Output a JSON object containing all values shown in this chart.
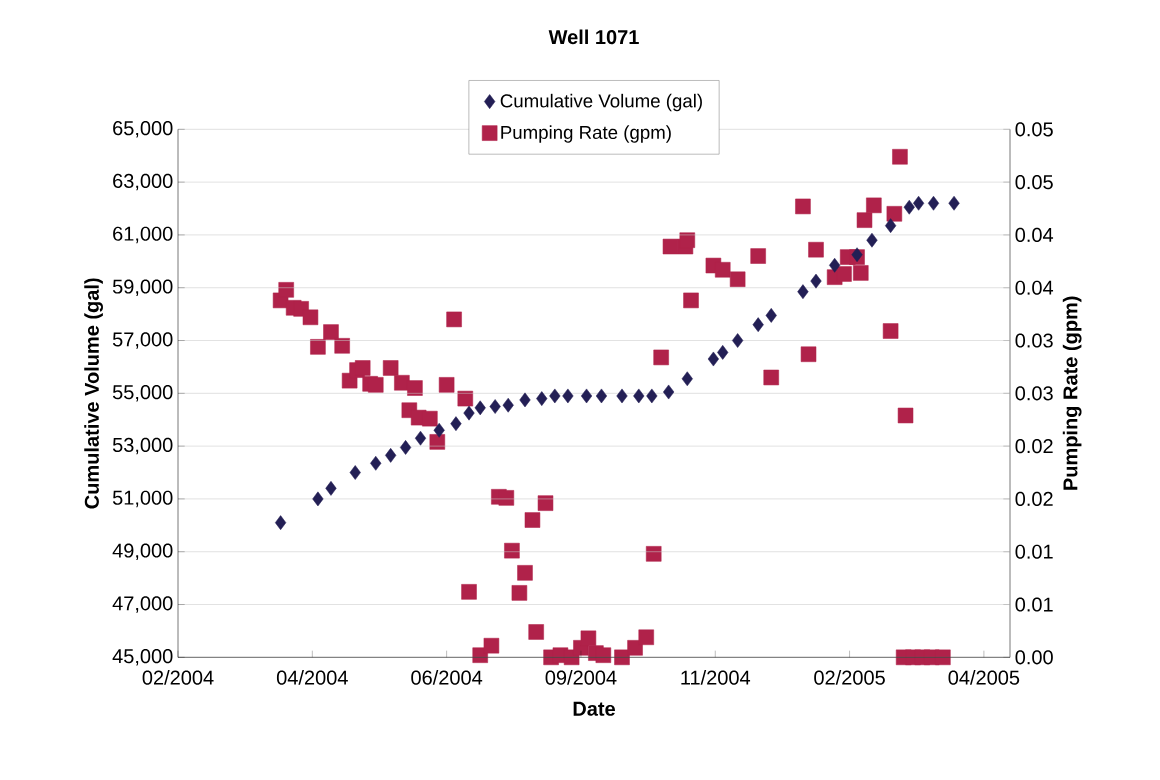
{
  "chart_data": {
    "type": "scatter",
    "title": "Well 1071",
    "xlabel": "Date",
    "ylabel": "Cumulative Volume (gal)",
    "y2label": "Pumping Rate (gpm)",
    "xlim": [
      "2004-02-07",
      "2005-04-28"
    ],
    "xticks": [
      {
        "value": "2004-02-07",
        "label": "02/2004"
      },
      {
        "value": "2004-04-19",
        "label": "04/2004"
      },
      {
        "value": "2004-06-30",
        "label": "06/2004"
      },
      {
        "value": "2004-09-10",
        "label": "09/2004"
      },
      {
        "value": "2004-11-21",
        "label": "11/2004"
      },
      {
        "value": "2005-02-01",
        "label": "02/2005"
      },
      {
        "value": "2005-04-14",
        "label": "04/2005"
      }
    ],
    "ylim": [
      45000,
      65000
    ],
    "yticks": [
      {
        "value": 45000,
        "label": "45,000"
      },
      {
        "value": 47000,
        "label": "47,000"
      },
      {
        "value": 49000,
        "label": "49,000"
      },
      {
        "value": 51000,
        "label": "51,000"
      },
      {
        "value": 53000,
        "label": "53,000"
      },
      {
        "value": 55000,
        "label": "55,000"
      },
      {
        "value": 57000,
        "label": "57,000"
      },
      {
        "value": 59000,
        "label": "59,000"
      },
      {
        "value": 61000,
        "label": "61,000"
      },
      {
        "value": 63000,
        "label": "63,000"
      },
      {
        "value": 65000,
        "label": "65,000"
      }
    ],
    "y2lim": [
      0,
      0.05
    ],
    "y2ticks": [
      {
        "value": 0,
        "label": "0.00"
      },
      {
        "value": 0.005,
        "label": "0.01"
      },
      {
        "value": 0.01,
        "label": "0.01"
      },
      {
        "value": 0.015,
        "label": "0.02"
      },
      {
        "value": 0.02,
        "label": "0.02"
      },
      {
        "value": 0.025,
        "label": "0.03"
      },
      {
        "value": 0.03,
        "label": "0.03"
      },
      {
        "value": 0.035,
        "label": "0.04"
      },
      {
        "value": 0.04,
        "label": "0.04"
      },
      {
        "value": 0.045,
        "label": "0.05"
      },
      {
        "value": 0.05,
        "label": "0.05"
      }
    ],
    "grid": "y",
    "legend": "top",
    "series": [
      {
        "name": "Cumulative Volume (gal)",
        "color": "#231f55",
        "marker": "diamond",
        "x": [
          "2004-04-02",
          "2004-04-22",
          "2004-04-29",
          "2004-05-12",
          "2004-05-23",
          "2004-05-31",
          "2004-06-08",
          "2004-06-16",
          "2004-06-26",
          "2004-07-05",
          "2004-07-12",
          "2004-07-18",
          "2004-07-26",
          "2004-08-02",
          "2004-08-11",
          "2004-08-20",
          "2004-08-27",
          "2004-09-03",
          "2004-09-13",
          "2004-09-21",
          "2004-10-02",
          "2004-10-11",
          "2004-10-18",
          "2004-10-27",
          "2004-11-06",
          "2004-11-20",
          "2004-11-25",
          "2004-12-03",
          "2004-12-14",
          "2004-12-21",
          "2005-01-07",
          "2005-01-14",
          "2005-01-24",
          "2005-02-05",
          "2005-02-13",
          "2005-02-23",
          "2005-03-05",
          "2005-03-10",
          "2005-03-18",
          "2005-03-29"
        ],
        "values": [
          50100,
          51000,
          51400,
          52000,
          52350,
          52650,
          52950,
          53300,
          53600,
          53850,
          54250,
          54450,
          54500,
          54550,
          54750,
          54800,
          54900,
          54900,
          54900,
          54900,
          54900,
          54900,
          54900,
          55050,
          55550,
          56300,
          56550,
          57000,
          57600,
          57950,
          58850,
          59250,
          59850,
          60250,
          60800,
          61350,
          62050,
          62200,
          62200,
          62200
        ]
      },
      {
        "name": "Pumping Rate (gpm)",
        "color": "#b0224a",
        "marker": "square",
        "axis": "y2",
        "x": [
          "2004-04-02",
          "2004-04-05",
          "2004-04-09",
          "2004-04-13",
          "2004-04-18",
          "2004-04-22",
          "2004-04-29",
          "2004-05-05",
          "2004-05-09",
          "2004-05-13",
          "2004-05-16",
          "2004-05-20",
          "2004-05-23",
          "2004-05-31",
          "2004-06-06",
          "2004-06-10",
          "2004-06-13",
          "2004-06-15",
          "2004-06-21",
          "2004-06-25",
          "2004-06-30",
          "2004-07-04",
          "2004-07-10",
          "2004-07-12",
          "2004-07-18",
          "2004-07-24",
          "2004-07-28",
          "2004-08-01",
          "2004-08-04",
          "2004-08-08",
          "2004-08-11",
          "2004-08-15",
          "2004-08-17",
          "2004-08-22",
          "2004-08-25",
          "2004-08-30",
          "2004-09-05",
          "2004-09-10",
          "2004-09-14",
          "2004-09-18",
          "2004-09-22",
          "2004-10-02",
          "2004-10-09",
          "2004-10-15",
          "2004-10-19",
          "2004-10-23",
          "2004-10-28",
          "2004-11-05",
          "2004-11-06",
          "2004-11-08",
          "2004-11-20",
          "2004-11-25",
          "2004-12-03",
          "2004-12-14",
          "2004-12-21",
          "2005-01-07",
          "2005-01-10",
          "2005-01-14",
          "2005-01-24",
          "2005-01-29",
          "2005-01-31",
          "2005-02-05",
          "2005-02-07",
          "2005-02-09",
          "2005-02-14",
          "2005-02-23",
          "2005-02-25",
          "2005-02-28",
          "2005-03-03",
          "2005-03-02",
          "2005-03-07",
          "2005-03-12",
          "2005-03-17",
          "2005-03-23"
        ],
        "values": [
          0.0338,
          0.0348,
          0.0331,
          0.033,
          0.0322,
          0.0294,
          0.0308,
          0.0295,
          0.0262,
          0.0272,
          0.0274,
          0.0259,
          0.0258,
          0.0274,
          0.026,
          0.0234,
          0.0255,
          0.0227,
          0.0226,
          0.0204,
          0.0258,
          0.032,
          0.0245,
          0.0062,
          0.0002,
          0.0011,
          0.0152,
          0.0151,
          0.0101,
          0.0061,
          0.008,
          0.013,
          0.0024,
          0.0146,
          0.0,
          0.0002,
          0.0,
          0.0009,
          0.0018,
          0.0004,
          0.0002,
          0.0,
          0.0009,
          0.0019,
          0.0098,
          0.0284,
          0.0389,
          0.0389,
          0.0395,
          0.0338,
          0.0371,
          0.0367,
          0.0358,
          0.038,
          0.0265,
          0.0427,
          0.0287,
          0.0386,
          0.036,
          0.0363,
          0.0379,
          0.0379,
          0.0364,
          0.0414,
          0.0428,
          0.0309,
          0.042,
          0.0474,
          0.0229,
          0.0,
          0.0,
          0.0,
          0.0,
          0.0
        ]
      }
    ]
  }
}
